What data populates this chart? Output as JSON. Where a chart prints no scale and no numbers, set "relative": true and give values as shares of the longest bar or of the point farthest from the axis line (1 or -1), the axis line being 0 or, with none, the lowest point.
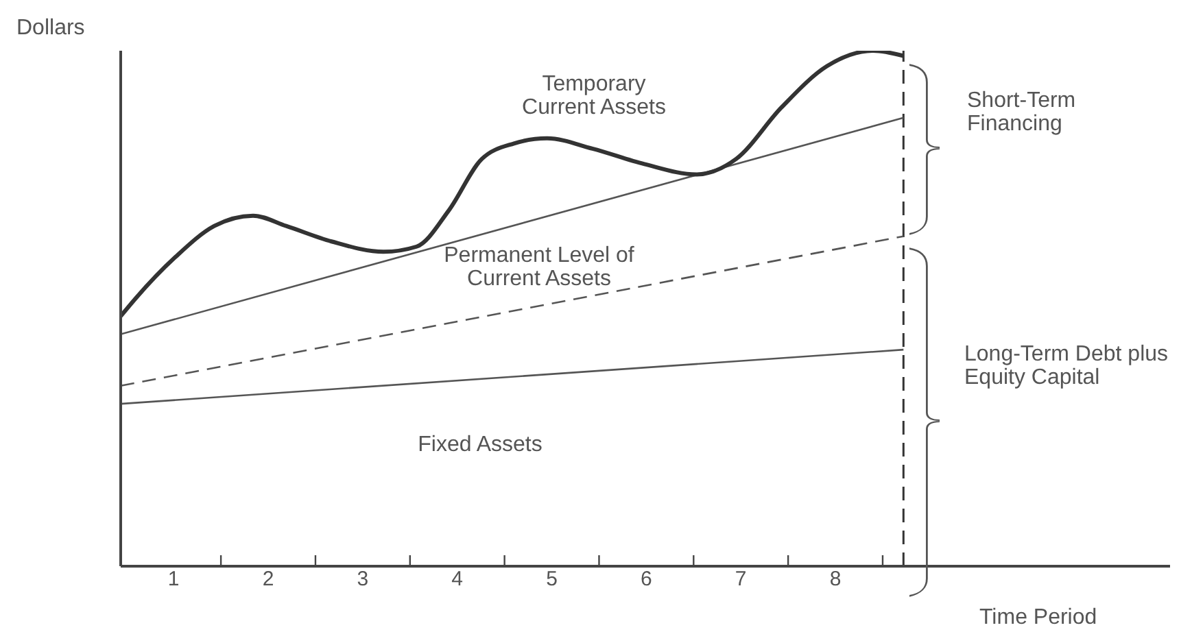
{
  "chart_data": {
    "type": "line",
    "relative": true,
    "ylabel": "Dollars",
    "xlabel": "Time Period",
    "xlim": [
      0.44,
      11.54
    ],
    "xticks": [
      1,
      {
        "value": 1.5,
        "label": null
      },
      2,
      {
        "value": 2.5,
        "label": null
      },
      3,
      {
        "value": 3.5,
        "label": null
      },
      4,
      {
        "value": 4.5,
        "label": null
      },
      5,
      {
        "value": 5.5,
        "label": null
      },
      6,
      {
        "value": 6.5,
        "label": null
      },
      7,
      {
        "value": 7.5,
        "label": null
      },
      8,
      {
        "value": 8.5,
        "label": null
      }
    ],
    "marker": "none",
    "series": [
      {
        "color": "#555555",
        "x": [
          0.44,
          8.72
        ],
        "values": [
          0.315,
          0.42
        ]
      },
      {
        "color": "#555555",
        "line_style": "dashed",
        "x": [
          0.44,
          8.72
        ],
        "values": [
          0.35,
          0.64
        ]
      },
      {
        "color": "#555555",
        "x": [
          0.44,
          8.72
        ],
        "values": [
          0.45,
          0.87
        ]
      },
      {
        "color": "#333333",
        "x": [
          0.44,
          0.6,
          1.02,
          1.43,
          1.84,
          2.19,
          2.67,
          3.22,
          3.57,
          3.91,
          4.26,
          4.6,
          4.95,
          5.43,
          5.98,
          6.53,
          6.95,
          7.43,
          7.91,
          8.4,
          8.72
        ],
        "values": [
          0.485,
          0.52,
          0.6,
          0.66,
          0.68,
          0.66,
          0.63,
          0.61,
          0.62,
          0.69,
          0.79,
          0.82,
          0.83,
          0.81,
          0.78,
          0.76,
          0.79,
          0.89,
          0.97,
          1.0,
          0.99
        ]
      }
    ],
    "ref_lines": [
      {
        "axis": "x",
        "value": 8.72,
        "color": "#333333",
        "line_style": "dashed"
      }
    ],
    "annotations": [
      "Temporary Current Assets",
      "Permanent Level of Current Assets",
      "Fixed Assets",
      "Short-Term Financing",
      "Long-Term Debt plus Equity Capital"
    ]
  }
}
